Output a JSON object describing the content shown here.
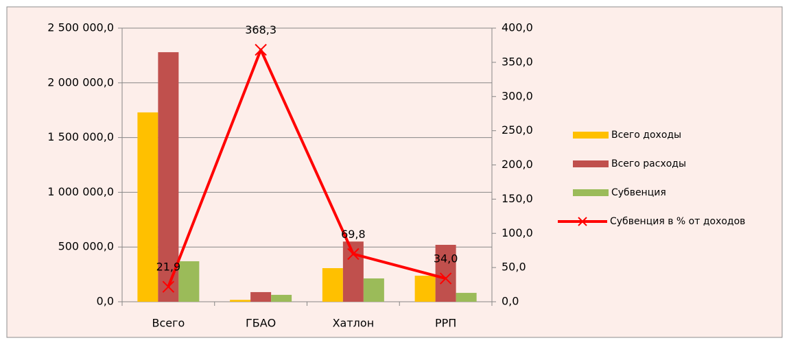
{
  "chart_data": {
    "type": "bar",
    "categories": [
      "Всего",
      "ГБАО",
      "Хатлон",
      "РРП"
    ],
    "series": [
      {
        "name": "Всего доходы",
        "color": "#ffc000",
        "values": [
          1730000,
          17000,
          307000,
          238000
        ]
      },
      {
        "name": "Всего расходы",
        "color": "#c0504d",
        "values": [
          2280000,
          88000,
          550000,
          520000
        ]
      },
      {
        "name": "Субвенция",
        "color": "#9bbb59",
        "values": [
          370000,
          63000,
          213000,
          81000
        ]
      },
      {
        "name": "Субвенция в % от доходов",
        "type": "line",
        "axis": "y2",
        "color": "#ff0000",
        "values": [
          21.9,
          368.3,
          69.8,
          34.0
        ],
        "value_labels": [
          "21,9",
          "368,3",
          "69,8",
          "34,0"
        ]
      }
    ],
    "ylim": [
      0,
      2500000
    ],
    "yticks": [
      {
        "value": 0,
        "label": "0,0"
      },
      {
        "value": 500000,
        "label": "500 000,0"
      },
      {
        "value": 1000000,
        "label": "1 000 000,0"
      },
      {
        "value": 1500000,
        "label": "1 500 000,0"
      },
      {
        "value": 2000000,
        "label": "2 000 000,0"
      },
      {
        "value": 2500000,
        "label": "2 500 000,0"
      }
    ],
    "y2lim": [
      0,
      400
    ],
    "y2ticks": [
      {
        "value": 0,
        "label": "0,0"
      },
      {
        "value": 50,
        "label": "50,0"
      },
      {
        "value": 100,
        "label": "100,0"
      },
      {
        "value": 150,
        "label": "150,0"
      },
      {
        "value": 200,
        "label": "200,0"
      },
      {
        "value": 250,
        "label": "250,0"
      },
      {
        "value": 300,
        "label": "300,0"
      },
      {
        "value": 350,
        "label": "350,0"
      },
      {
        "value": 400,
        "label": "400,0"
      }
    ],
    "grid": true,
    "legend": "right"
  }
}
